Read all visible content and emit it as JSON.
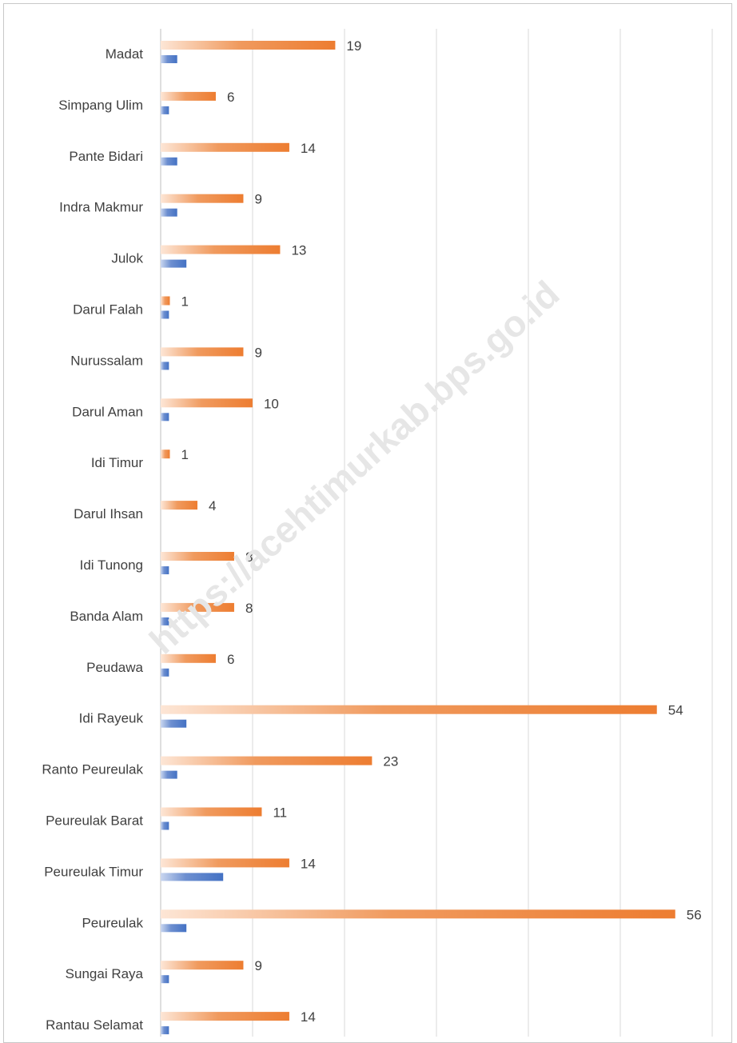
{
  "chart_data": {
    "type": "bar",
    "orientation": "horizontal",
    "categories": [
      "Madat",
      "Simpang Ulim",
      "Pante Bidari",
      "Indra Makmur",
      "Julok",
      "Darul Falah",
      "Nurussalam",
      "Darul Aman",
      "Idi Timur",
      "Darul Ihsan",
      "Idi Tunong",
      "Banda Alam",
      "Peudawa",
      "Idi Rayeuk",
      "Ranto Peureulak",
      "Peureulak Barat",
      "Peureulak Timur",
      "Peureulak",
      "Sungai Raya",
      "Rantau Selamat"
    ],
    "series": [
      {
        "color": "#ed7d31",
        "values": [
          19,
          6,
          14,
          9,
          13,
          1,
          9,
          10,
          1,
          4,
          8,
          8,
          6,
          54,
          23,
          11,
          14,
          56,
          9,
          14
        ],
        "data_labels": true
      },
      {
        "color": "#4472c4",
        "values": [
          1.8,
          0.9,
          1.8,
          1.8,
          2.8,
          0.9,
          0.9,
          0.9,
          0,
          0,
          0.9,
          0.9,
          0.9,
          2.8,
          1.8,
          0.9,
          6.8,
          2.8,
          0.9,
          0.9
        ],
        "data_labels": false
      }
    ],
    "xlim": [
      0,
      60
    ],
    "grid_step": 10,
    "grid": true,
    "legend": "none",
    "title": "",
    "xlabel": "",
    "ylabel": ""
  },
  "watermark": "https://acehtimurkab.bps.go.id"
}
